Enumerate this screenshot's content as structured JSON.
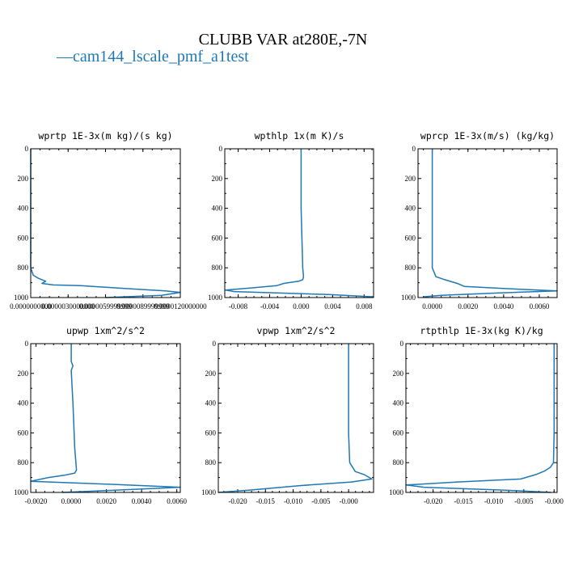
{
  "figure": {
    "title": "CLUBB VAR at280E,-7N",
    "legend_label": "cam144_lscale_pmf_a1test",
    "legend_color": "#1f77b4",
    "legend_mark": "—"
  },
  "chart_data": [
    {
      "type": "line",
      "title": "wprtp  1E-3x(m kg)/(s kg)",
      "xlim": [
        0.0,
        1.2e-05
      ],
      "ylim": [
        1000,
        0
      ],
      "x_ticks": [
        0.0,
        3e-06,
        6e-06,
        9e-06,
        1.2e-05
      ],
      "x_tick_labels": [
        "0.0000000000",
        "0.0000030000000",
        "0.0000059999999",
        "0.0000089999999",
        "0.0000120000000"
      ],
      "y_ticks": [
        0,
        200,
        400,
        600,
        800,
        1000
      ],
      "y_tick_labels": [
        "0",
        "200",
        "400",
        "600",
        "800",
        "1000"
      ],
      "series": [
        {
          "x": [
            0.0,
            0.0,
            0.0,
            0.0,
            0.0,
            2e-07,
            6e-07,
            1.2e-06,
            9e-07,
            1.8e-06,
            4e-06,
            7.8e-06,
            1.08e-05,
            1.2e-05,
            1.05e-05,
            6e-06
          ],
          "y": [
            0,
            200,
            400,
            600,
            800,
            850,
            870,
            890,
            905,
            915,
            920,
            940,
            955,
            965,
            985,
            1000
          ]
        }
      ]
    },
    {
      "type": "line",
      "title": "wpthlp  1x(m K)/s",
      "xlim": [
        -0.0097,
        0.0092
      ],
      "ylim": [
        1000,
        0
      ],
      "x_ticks": [
        -0.008,
        -0.004,
        0.0,
        0.004,
        0.008
      ],
      "x_tick_labels": [
        "-0.008",
        "-0.004",
        "0.000",
        "0.004",
        "0.008"
      ],
      "y_ticks": [
        0,
        200,
        400,
        600,
        800,
        1000
      ],
      "y_tick_labels": [
        "0",
        "200",
        "400",
        "600",
        "800",
        "1000"
      ],
      "series": [
        {
          "x": [
            0.0,
            0.0,
            0.0,
            0.0001,
            0.0002,
            0.0003,
            0.0002,
            -0.0003,
            -0.0022,
            -0.0031,
            -0.0062,
            -0.0096,
            -0.0085,
            0.0035,
            0.0092
          ],
          "y": [
            0,
            200,
            400,
            600,
            800,
            860,
            880,
            890,
            905,
            920,
            935,
            950,
            960,
            980,
            995
          ]
        }
      ]
    },
    {
      "type": "line",
      "title": "wprcp  1E-3x(m/s) (kg/kg)",
      "xlim": [
        -0.0008,
        0.007
      ],
      "ylim": [
        1000,
        0
      ],
      "x_ticks": [
        0.0,
        0.002,
        0.004,
        0.006
      ],
      "x_tick_labels": [
        "0.0000",
        "0.0020",
        "0.0040",
        "0.0060"
      ],
      "y_ticks": [
        0,
        200,
        400,
        600,
        800,
        1000
      ],
      "y_tick_labels": [
        "0",
        "200",
        "400",
        "600",
        "800",
        "1000"
      ],
      "series": [
        {
          "x": [
            0.0,
            0.0,
            0.0,
            0.0,
            0.0,
            0.0002,
            0.0007,
            0.0014,
            0.0018,
            0.0042,
            0.007,
            0.0035,
            0.0005,
            -0.0005
          ],
          "y": [
            0,
            200,
            400,
            600,
            800,
            860,
            880,
            905,
            925,
            940,
            955,
            970,
            985,
            995
          ]
        }
      ]
    },
    {
      "type": "line",
      "title": "upwp  1xm^2/s^2",
      "xlim": [
        -0.0023,
        0.0062
      ],
      "ylim": [
        1000,
        0
      ],
      "x_ticks": [
        -0.002,
        0.0,
        0.002,
        0.004,
        0.006
      ],
      "x_tick_labels": [
        "-0.0020",
        "0.0000",
        "0.0020",
        "0.0040",
        "0.0060"
      ],
      "y_ticks": [
        0,
        200,
        400,
        600,
        800,
        1000
      ],
      "y_tick_labels": [
        "0",
        "200",
        "400",
        "600",
        "800",
        "1000"
      ],
      "series": [
        {
          "x": [
            0.0,
            0.0,
            0.0001,
            0.0,
            0.0001,
            0.0002,
            0.0003,
            0.0002,
            -0.0004,
            -0.0013,
            -0.0023,
            0.0022,
            0.0062,
            0.0025,
            -0.0005
          ],
          "y": [
            0,
            120,
            150,
            180,
            400,
            700,
            850,
            870,
            885,
            900,
            925,
            945,
            965,
            985,
            1000
          ]
        }
      ]
    },
    {
      "type": "line",
      "title": "vpwp  1xm^2/s^2",
      "xlim": [
        -0.0235,
        0.0045
      ],
      "ylim": [
        1000,
        0
      ],
      "x_ticks": [
        -0.02,
        -0.015,
        -0.01,
        -0.005,
        0.0
      ],
      "x_tick_labels": [
        "-0.020",
        "-0.015",
        "-0.010",
        "-0.005",
        "-0.000"
      ],
      "y_ticks": [
        0,
        200,
        400,
        600,
        800,
        1000
      ],
      "y_tick_labels": [
        "0",
        "200",
        "400",
        "600",
        "800",
        "1000"
      ],
      "series": [
        {
          "x": [
            0.0,
            0.0,
            0.0,
            0.0,
            0.0002,
            0.0012,
            0.0028,
            0.0042,
            0.0005,
            -0.009,
            -0.018,
            -0.0235
          ],
          "y": [
            0,
            200,
            400,
            600,
            800,
            860,
            880,
            910,
            930,
            955,
            985,
            1000
          ]
        }
      ]
    },
    {
      "type": "line",
      "title": "rtpthlp  1E-3x(kg K)/kg",
      "xlim": [
        -0.0245,
        0.0005
      ],
      "ylim": [
        1000,
        0
      ],
      "x_ticks": [
        -0.02,
        -0.015,
        -0.01,
        -0.005,
        0.0
      ],
      "x_tick_labels": [
        "-0.020",
        "-0.015",
        "-0.010",
        "-0.005",
        "-0.000"
      ],
      "y_ticks": [
        0,
        200,
        400,
        600,
        800,
        1000
      ],
      "y_tick_labels": [
        "0",
        "200",
        "400",
        "600",
        "800",
        "1000"
      ],
      "series": [
        {
          "x": [
            0.0,
            0.0,
            0.0,
            0.0,
            -0.0001,
            -0.0006,
            -0.0015,
            -0.003,
            -0.0055,
            -0.016,
            -0.0245,
            -0.0215,
            -0.008,
            -0.0005
          ],
          "y": [
            0,
            200,
            400,
            600,
            800,
            830,
            855,
            880,
            910,
            930,
            950,
            965,
            985,
            1000
          ]
        }
      ]
    }
  ]
}
